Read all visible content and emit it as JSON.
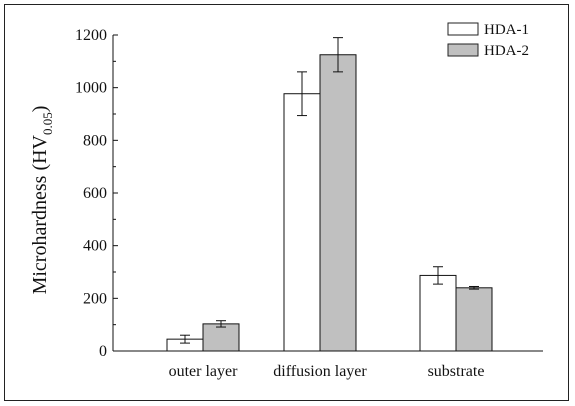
{
  "chart_data": {
    "type": "bar",
    "ylabel_main": "Microhardness (HV",
    "ylabel_sub": "0.05",
    "ylabel_end": ")",
    "categories": [
      "outer layer",
      "diffusion layer",
      "substrate"
    ],
    "series": [
      {
        "name": "HDA-1",
        "color": "#ffffff",
        "values": [
          45,
          977,
          287
        ],
        "errors": [
          15,
          83,
          33
        ]
      },
      {
        "name": "HDA-2",
        "color": "#c0c0c0",
        "values": [
          103,
          1125,
          240
        ],
        "errors": [
          12,
          65,
          5
        ]
      }
    ],
    "ylim": [
      0,
      1200
    ],
    "yticks": [
      "0",
      "200",
      "400",
      "600",
      "800",
      "1000",
      "1200"
    ],
    "legend_position": "top-right",
    "grid": false
  }
}
